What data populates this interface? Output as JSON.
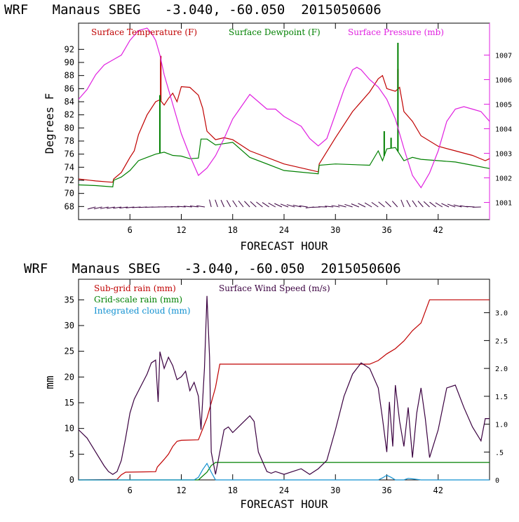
{
  "chart_data": [
    {
      "type": "line",
      "title": "WRF   Manaus SBEG   -3.040, -60.050  2015050606",
      "xlabel": "FORECAST HOUR",
      "ylabel": "Degrees F",
      "xlim": [
        0,
        48
      ],
      "ylim": [
        66,
        96
      ],
      "y2lim": [
        1000.3,
        1008.3
      ],
      "x_ticks": [
        "6",
        "12",
        "18",
        "24",
        "30",
        "36",
        "42"
      ],
      "y_ticks": [
        "68",
        "70",
        "72",
        "74",
        "76",
        "78",
        "80",
        "82",
        "84",
        "86",
        "88",
        "90",
        "92"
      ],
      "y2_ticks": [
        "1001",
        "1002",
        "1003",
        "1004",
        "1005",
        "1006",
        "1007"
      ],
      "legend": [
        {
          "name": "Surface Temperature (F)",
          "color": "#c00000"
        },
        {
          "name": "Surface Dewpoint (F)",
          "color": "#008000"
        },
        {
          "name": "Surface Pressure (mb)",
          "color": "#e020e0"
        }
      ],
      "series": [
        {
          "name": "Surface Temperature (F)",
          "axis": "left",
          "color": "#c00000",
          "x": [
            0,
            2,
            4,
            4.1,
            5,
            6,
            6.5,
            7,
            8,
            9,
            9.5,
            10,
            10.5,
            11,
            11.5,
            12,
            13,
            14,
            14.5,
            15,
            16,
            17,
            18,
            20,
            24,
            28,
            28.1,
            30,
            32,
            34,
            35,
            35.5,
            36,
            37,
            37.5,
            38,
            39,
            40,
            42,
            44,
            46,
            47.5,
            48
          ],
          "y": [
            72.2,
            71.9,
            71.7,
            72.2,
            73.2,
            75.5,
            76.5,
            79,
            82,
            84,
            84.3,
            83.5,
            84.5,
            85.3,
            84,
            86.3,
            86.2,
            85,
            83,
            79.5,
            78.2,
            78.5,
            78.2,
            76.5,
            74.5,
            73.3,
            74.5,
            78.5,
            82.5,
            85.5,
            87.5,
            88,
            86,
            85.6,
            86.2,
            82.5,
            81,
            78.8,
            77.2,
            76.5,
            75.8,
            75,
            75.3
          ],
          "spikes": [
            [
              9.6,
              91
            ],
            [
              37.3,
              89
            ]
          ]
        },
        {
          "name": "Surface Dewpoint (F)",
          "axis": "left",
          "color": "#008000",
          "x": [
            0,
            2,
            4,
            4.1,
            5,
            6,
            7,
            8,
            9,
            10,
            11,
            12,
            13,
            14,
            14.3,
            15,
            16,
            17,
            18,
            20,
            24,
            28,
            28.1,
            30,
            34,
            35,
            35.5,
            36,
            37,
            38,
            39,
            40,
            42,
            44,
            46,
            48
          ],
          "y": [
            71.3,
            71.2,
            71,
            72,
            72.5,
            73.5,
            75,
            75.5,
            76,
            76.3,
            75.8,
            75.7,
            75.3,
            75.4,
            78.3,
            78.3,
            77.4,
            77.6,
            77.8,
            75.5,
            73.5,
            73,
            74.3,
            74.5,
            74.3,
            76.5,
            75,
            76.8,
            77,
            75,
            75.5,
            75.2,
            75,
            74.8,
            74.3,
            73.8
          ],
          "spikes": [
            [
              9.5,
              85
            ],
            [
              37.3,
              93
            ],
            [
              35.7,
              79.5
            ],
            [
              36.5,
              78.5
            ]
          ]
        },
        {
          "name": "Surface Pressure (mb)",
          "axis": "right",
          "color": "#e020e0",
          "x": [
            0,
            1,
            2,
            3,
            4,
            5,
            6,
            7,
            8,
            8.5,
            9,
            9.5,
            10,
            11,
            12,
            13,
            14,
            15,
            16,
            17,
            18,
            19,
            20,
            21,
            22,
            23,
            24,
            25,
            26,
            27,
            28,
            29,
            30,
            31,
            32,
            32.5,
            33,
            34,
            35,
            36,
            37,
            38,
            39,
            40,
            41,
            42,
            43,
            44,
            45,
            46,
            47,
            48
          ],
          "y": [
            1005.2,
            1005.6,
            1006.2,
            1006.6,
            1006.8,
            1007.0,
            1007.6,
            1008.0,
            1008.1,
            1007.9,
            1007.6,
            1007.0,
            1006.2,
            1005.0,
            1003.8,
            1002.9,
            1002.1,
            1002.4,
            1002.9,
            1003.6,
            1004.4,
            1004.9,
            1005.4,
            1005.1,
            1004.8,
            1004.8,
            1004.5,
            1004.3,
            1004.1,
            1003.6,
            1003.3,
            1003.6,
            1004.6,
            1005.6,
            1006.4,
            1006.5,
            1006.4,
            1006.0,
            1005.7,
            1005.2,
            1004.4,
            1003.2,
            1002.1,
            1001.6,
            1002.2,
            1003.1,
            1004.3,
            1004.8,
            1004.9,
            1004.8,
            1004.7,
            1004.3
          ]
        }
      ]
    },
    {
      "type": "line",
      "title": "WRF   Manaus SBEG   -3.040, -60.050  2015050606",
      "xlabel": "FORECAST HOUR",
      "ylabel": "mm",
      "xlim": [
        0,
        48
      ],
      "ylim": [
        0,
        39
      ],
      "y2lim": [
        0,
        3.6
      ],
      "x_ticks": [
        "6",
        "12",
        "18",
        "24",
        "30",
        "36",
        "42"
      ],
      "y_ticks": [
        "0",
        "5",
        "10",
        "15",
        "20",
        "25",
        "30",
        "35"
      ],
      "y2_ticks": [
        "0",
        ".5",
        "1.0",
        "1.5",
        "2.0",
        "2.5",
        "3.0"
      ],
      "legend": [
        {
          "name": "Sub-grid rain (mm)",
          "color": "#c00000"
        },
        {
          "name": "Surface Wind Speed (m/s)",
          "color": "#3a0040"
        },
        {
          "name": "Grid-scale rain (mm)",
          "color": "#008000"
        },
        {
          "name": "Integrated cloud (mm)",
          "color": "#1090d0"
        }
      ],
      "series": [
        {
          "name": "Sub-grid rain (mm)",
          "axis": "left",
          "color": "#c00000",
          "x": [
            0,
            4.5,
            5,
            5.5,
            9,
            9.2,
            10,
            10.5,
            11,
            11.5,
            12,
            14,
            15,
            16,
            16.5,
            34,
            35,
            36,
            37,
            38,
            39,
            40,
            41,
            48
          ],
          "y": [
            0,
            0.1,
            1,
            1.5,
            1.6,
            2.5,
            4,
            5,
            6.5,
            7.5,
            7.7,
            7.8,
            12,
            18,
            22.5,
            22.5,
            23.2,
            24.5,
            25.5,
            27,
            29,
            30.5,
            35,
            35
          ]
        },
        {
          "name": "Grid-scale rain (mm)",
          "axis": "left",
          "color": "#008000",
          "x": [
            0,
            14,
            15,
            15.5,
            16,
            48
          ],
          "y": [
            0,
            0,
            1.5,
            2.8,
            3.4,
            3.4
          ]
        },
        {
          "name": "Integrated cloud (mm)",
          "axis": "left",
          "color": "#1090d0",
          "x": [
            0,
            13.5,
            14,
            14.5,
            15,
            15.5,
            16,
            35,
            35.5,
            36,
            36.5,
            37,
            38,
            38.5,
            39,
            40,
            48
          ],
          "y": [
            0,
            0,
            0.5,
            2,
            3.2,
            1.5,
            0,
            0,
            0.4,
            0.9,
            0.5,
            0,
            0,
            0.3,
            0.2,
            0,
            0
          ]
        },
        {
          "name": "Surface Wind Speed (m/s)",
          "axis": "right",
          "color": "#3a0040",
          "x": [
            0,
            1,
            2,
            3,
            3.5,
            4,
            4.5,
            5,
            5.5,
            6,
            6.5,
            7,
            8,
            8.5,
            9,
            9.3,
            9.5,
            10,
            10.5,
            11,
            11.5,
            12,
            12.5,
            13,
            13.5,
            14,
            14.3,
            14.7,
            15,
            15.3,
            15.5,
            16,
            17,
            17.5,
            18,
            19,
            20,
            20.5,
            21,
            22,
            22.5,
            23,
            24,
            25,
            26,
            27,
            28,
            29,
            30,
            31,
            32,
            33,
            34,
            35,
            35.5,
            36,
            36.3,
            36.7,
            37,
            37.5,
            38,
            38.5,
            39,
            39.5,
            40,
            40.5,
            41,
            42,
            43,
            44,
            45,
            46,
            47,
            47.5,
            48
          ],
          "y": [
            0.9,
            0.75,
            0.5,
            0.25,
            0.15,
            0.1,
            0.15,
            0.35,
            0.75,
            1.2,
            1.45,
            1.6,
            1.9,
            2.1,
            2.15,
            1.4,
            2.3,
            2.0,
            2.2,
            2.05,
            1.8,
            1.85,
            1.95,
            1.6,
            1.75,
            1.5,
            0.9,
            2.0,
            3.3,
            2.2,
            0.5,
            0.1,
            0.9,
            0.95,
            0.85,
            1.0,
            1.15,
            1.05,
            0.5,
            0.15,
            0.12,
            0.15,
            0.1,
            0.15,
            0.2,
            0.1,
            0.2,
            0.35,
            0.9,
            1.5,
            1.9,
            2.1,
            2.0,
            1.65,
            1.1,
            0.5,
            1.4,
            0.6,
            1.7,
            1.05,
            0.6,
            1.3,
            0.4,
            1.2,
            1.65,
            1.1,
            0.4,
            0.9,
            1.65,
            1.7,
            1.3,
            0.95,
            0.7,
            1.1,
            1.1
          ]
        }
      ]
    }
  ]
}
